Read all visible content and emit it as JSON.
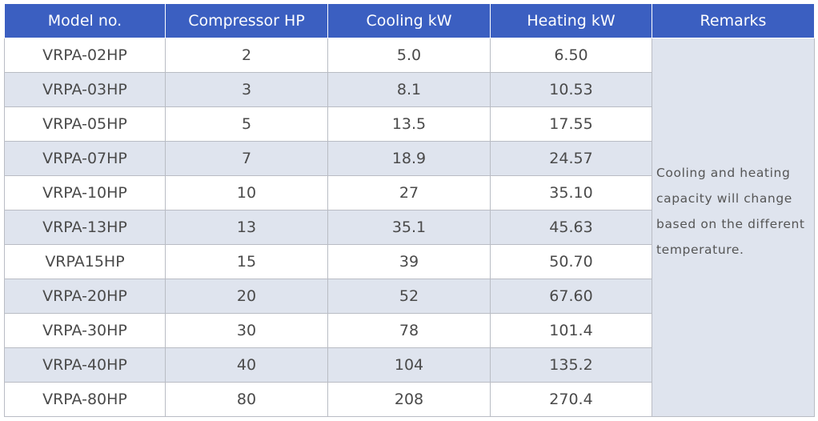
{
  "table": {
    "headers": [
      "Model no.",
      "Compressor HP",
      "Cooling  kW",
      "Heating kW",
      "Remarks"
    ],
    "rows": [
      [
        "VRPA-02HP",
        "2",
        "5.0",
        "6.50"
      ],
      [
        "VRPA-03HP",
        "3",
        "8.1",
        "10.53"
      ],
      [
        "VRPA-05HP",
        "5",
        "13.5",
        "17.55"
      ],
      [
        "VRPA-07HP",
        "7",
        "18.9",
        "24.57"
      ],
      [
        "VRPA-10HP",
        "10",
        "27",
        "35.10"
      ],
      [
        "VRPA-13HP",
        "13",
        "35.1",
        "45.63"
      ],
      [
        "VRPA15HP",
        "15",
        "39",
        "50.70"
      ],
      [
        "VRPA-20HP",
        "20",
        "52",
        "67.60"
      ],
      [
        "VRPA-30HP",
        "30",
        "78",
        "101.4"
      ],
      [
        "VRPA-40HP",
        "40",
        "104",
        "135.2"
      ],
      [
        "VRPA-80HP",
        "80",
        "208",
        "270.4"
      ]
    ],
    "remarks_lines": [
      "Cooling and heating",
      "capacity will change",
      "based on the different",
      "temperature."
    ]
  },
  "colors": {
    "header_bg": "#3b5fc1",
    "header_text": "#ffffff",
    "alt_row_bg": "#dfe4ee",
    "border": "#b9bcc4"
  }
}
